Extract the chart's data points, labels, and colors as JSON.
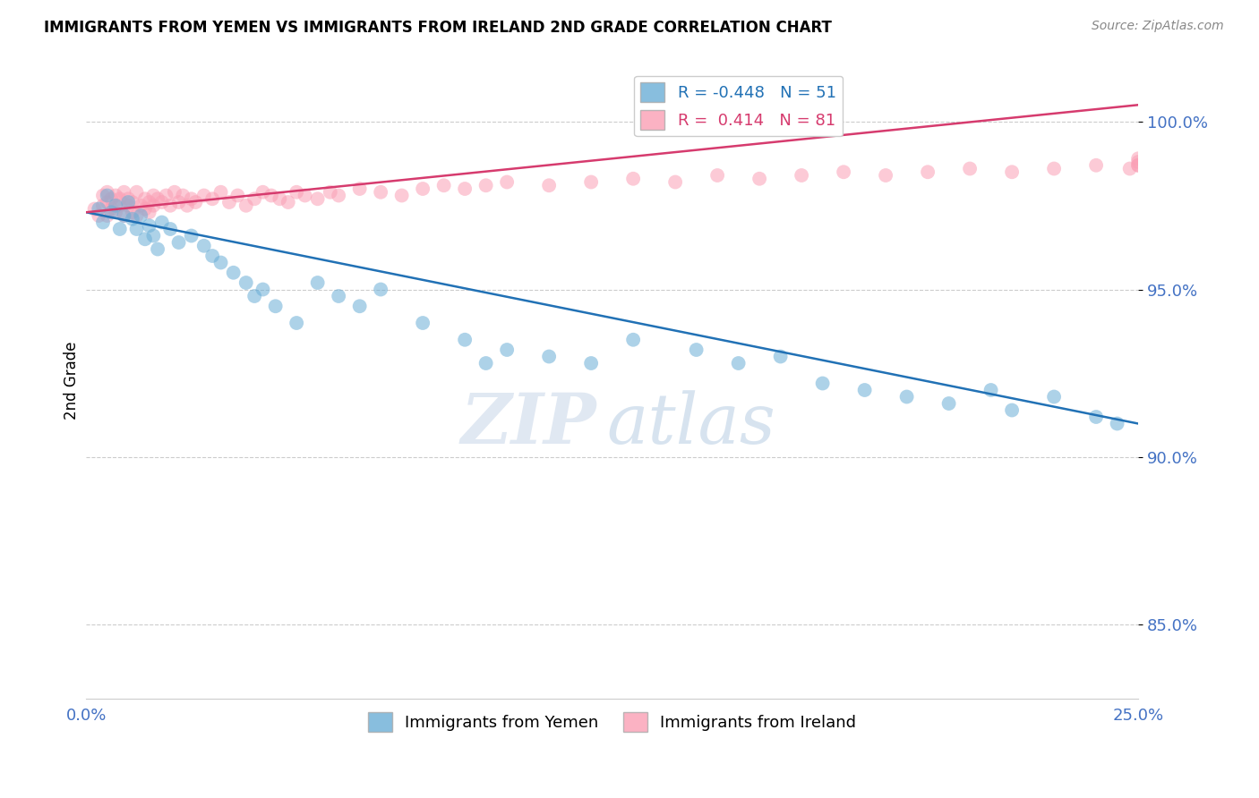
{
  "title": "IMMIGRANTS FROM YEMEN VS IMMIGRANTS FROM IRELAND 2ND GRADE CORRELATION CHART",
  "source": "Source: ZipAtlas.com",
  "ylabel": "2nd Grade",
  "ylabel_ticks": [
    "85.0%",
    "90.0%",
    "95.0%",
    "100.0%"
  ],
  "ylabel_values": [
    0.85,
    0.9,
    0.95,
    1.0
  ],
  "xlim": [
    0.0,
    0.25
  ],
  "ylim": [
    0.828,
    1.018
  ],
  "legend_blue_R": "-0.448",
  "legend_blue_N": "51",
  "legend_pink_R": "0.414",
  "legend_pink_N": "81",
  "legend_label_blue": "Immigrants from Yemen",
  "legend_label_pink": "Immigrants from Ireland",
  "blue_color": "#6baed6",
  "pink_color": "#fa9fb5",
  "blue_line_color": "#2171b5",
  "pink_line_color": "#d63b6e",
  "yemen_x": [
    0.003,
    0.004,
    0.005,
    0.006,
    0.007,
    0.008,
    0.009,
    0.01,
    0.011,
    0.012,
    0.013,
    0.014,
    0.015,
    0.016,
    0.017,
    0.018,
    0.02,
    0.022,
    0.025,
    0.028,
    0.03,
    0.032,
    0.035,
    0.038,
    0.04,
    0.042,
    0.045,
    0.05,
    0.055,
    0.06,
    0.065,
    0.07,
    0.08,
    0.09,
    0.095,
    0.1,
    0.11,
    0.12,
    0.13,
    0.145,
    0.155,
    0.165,
    0.175,
    0.185,
    0.195,
    0.205,
    0.215,
    0.22,
    0.23,
    0.24,
    0.245
  ],
  "yemen_y": [
    0.974,
    0.97,
    0.978,
    0.973,
    0.975,
    0.968,
    0.972,
    0.976,
    0.971,
    0.968,
    0.972,
    0.965,
    0.969,
    0.966,
    0.962,
    0.97,
    0.968,
    0.964,
    0.966,
    0.963,
    0.96,
    0.958,
    0.955,
    0.952,
    0.948,
    0.95,
    0.945,
    0.94,
    0.952,
    0.948,
    0.945,
    0.95,
    0.94,
    0.935,
    0.928,
    0.932,
    0.93,
    0.928,
    0.935,
    0.932,
    0.928,
    0.93,
    0.922,
    0.92,
    0.918,
    0.916,
    0.92,
    0.914,
    0.918,
    0.912,
    0.91
  ],
  "ireland_x": [
    0.002,
    0.003,
    0.004,
    0.004,
    0.005,
    0.005,
    0.005,
    0.006,
    0.006,
    0.007,
    0.007,
    0.008,
    0.008,
    0.009,
    0.009,
    0.01,
    0.01,
    0.011,
    0.011,
    0.012,
    0.012,
    0.013,
    0.014,
    0.014,
    0.015,
    0.015,
    0.016,
    0.016,
    0.017,
    0.018,
    0.019,
    0.02,
    0.021,
    0.022,
    0.023,
    0.024,
    0.025,
    0.026,
    0.028,
    0.03,
    0.032,
    0.034,
    0.036,
    0.038,
    0.04,
    0.042,
    0.044,
    0.046,
    0.048,
    0.05,
    0.052,
    0.055,
    0.058,
    0.06,
    0.065,
    0.07,
    0.075,
    0.08,
    0.085,
    0.09,
    0.095,
    0.1,
    0.11,
    0.12,
    0.13,
    0.14,
    0.15,
    0.16,
    0.17,
    0.18,
    0.19,
    0.2,
    0.21,
    0.22,
    0.23,
    0.24,
    0.248,
    0.25,
    0.25,
    0.25,
    0.25
  ],
  "ireland_y": [
    0.974,
    0.972,
    0.975,
    0.978,
    0.976,
    0.972,
    0.979,
    0.974,
    0.977,
    0.973,
    0.978,
    0.975,
    0.977,
    0.972,
    0.979,
    0.975,
    0.977,
    0.973,
    0.976,
    0.972,
    0.979,
    0.975,
    0.977,
    0.974,
    0.976,
    0.973,
    0.978,
    0.975,
    0.977,
    0.976,
    0.978,
    0.975,
    0.979,
    0.976,
    0.978,
    0.975,
    0.977,
    0.976,
    0.978,
    0.977,
    0.979,
    0.976,
    0.978,
    0.975,
    0.977,
    0.979,
    0.978,
    0.977,
    0.976,
    0.979,
    0.978,
    0.977,
    0.979,
    0.978,
    0.98,
    0.979,
    0.978,
    0.98,
    0.981,
    0.98,
    0.981,
    0.982,
    0.981,
    0.982,
    0.983,
    0.982,
    0.984,
    0.983,
    0.984,
    0.985,
    0.984,
    0.985,
    0.986,
    0.985,
    0.986,
    0.987,
    0.986,
    0.987,
    0.988,
    0.987,
    0.989
  ],
  "blue_trendline_x": [
    0.0,
    0.25
  ],
  "blue_trendline_y": [
    0.973,
    0.91
  ],
  "pink_trendline_x": [
    0.0,
    0.25
  ],
  "pink_trendline_y": [
    0.973,
    1.005
  ]
}
